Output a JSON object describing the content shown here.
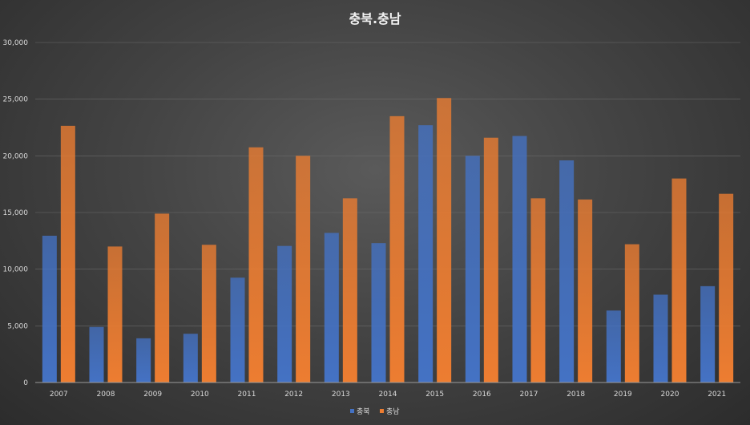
{
  "chart_data": {
    "type": "bar",
    "title": "충북.충남",
    "xlabel": "",
    "ylabel": "",
    "categories": [
      "2007",
      "2008",
      "2009",
      "2010",
      "2011",
      "2012",
      "2013",
      "2014",
      "2015",
      "2016",
      "2017",
      "2018",
      "2019",
      "2020",
      "2021"
    ],
    "series": [
      {
        "name": "충북",
        "color": "#4472c4",
        "values": [
          12950,
          4900,
          3900,
          4300,
          9250,
          12050,
          13200,
          12300,
          22700,
          20000,
          21750,
          19600,
          6350,
          7750,
          8500
        ]
      },
      {
        "name": "충남",
        "color": "#ed7d31",
        "values": [
          22650,
          12000,
          14900,
          12150,
          20750,
          20000,
          16250,
          23500,
          25100,
          21600,
          16250,
          16150,
          12200,
          18000,
          16650
        ]
      }
    ],
    "ylim": [
      0,
      30000
    ],
    "yticks": [
      "0",
      "5,000",
      "10,000",
      "15,000",
      "20,000",
      "25,000",
      "30,000"
    ],
    "grid": true,
    "legend_position": "bottom"
  }
}
